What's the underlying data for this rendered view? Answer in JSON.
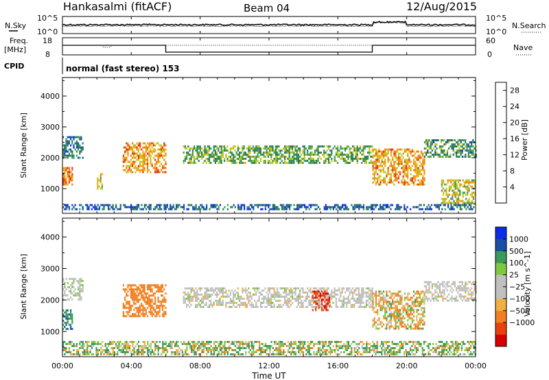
{
  "header": {
    "site": "Hankasalmi (fitACF)",
    "beam": "Beam 04",
    "date": "12/Aug/2015"
  },
  "noise_panel": {
    "left_label": "N.Sky",
    "right_label": "N.Search",
    "left_ticks": [
      "10^5",
      "10^0"
    ],
    "right_ticks": [
      "10^5",
      "10^0"
    ]
  },
  "freq_panel": {
    "left_label_1": "Freq.",
    "left_label_2": "[MHz]",
    "right_label": "Nave",
    "left_ticks": [
      "18",
      "8"
    ],
    "right_ticks": [
      "60",
      "0"
    ]
  },
  "cpid_panel": {
    "label": "CPID",
    "text": "normal (fast stereo) 153"
  },
  "x_axis": {
    "label": "Time UT",
    "ticks": [
      "00:00",
      "04:00",
      "08:00",
      "12:00",
      "16:00",
      "20:00",
      "00:00"
    ]
  },
  "colors": {
    "power": [
      "#0a2ee8",
      "#1a4fa8",
      "#2d7d52",
      "#3a9a5a",
      "#b8c820",
      "#e8b010",
      "#f08010",
      "#e83010",
      "#d80000"
    ],
    "velocity": [
      "#d80000",
      "#e84010",
      "#f08020",
      "#f0b040",
      "#c0c0c0",
      "#c0c0c0",
      "#80c840",
      "#3a9a5a",
      "#1a4fa8",
      "#0a2ee8"
    ]
  },
  "chart_data": [
    {
      "type": "heatmap",
      "title": "Power",
      "ylabel": "Slant Range [km]",
      "yticks": [
        "1000",
        "2000",
        "3000",
        "4000"
      ],
      "ylim": [
        200,
        4600
      ],
      "xlim": [
        "00:00",
        "24:00"
      ],
      "colorbar": {
        "label": "Power [dB]",
        "ticks": [
          "4",
          "8",
          "12",
          "16",
          "20",
          "24",
          "28"
        ],
        "range": [
          0,
          30
        ]
      },
      "bands": [
        {
          "t_start": 0.0,
          "t_end": 1.2,
          "range_km": [
            2000,
            2700
          ],
          "power_db": 8
        },
        {
          "t_start": 0.0,
          "t_end": 0.6,
          "range_km": [
            1100,
            1700
          ],
          "power_db": 22
        },
        {
          "t_start": 2.0,
          "t_end": 2.3,
          "range_km": [
            1000,
            1500
          ],
          "power_db": 16
        },
        {
          "t_start": 3.5,
          "t_end": 6.0,
          "range_km": [
            1500,
            2500
          ],
          "power_db": 20
        },
        {
          "t_start": 7.0,
          "t_end": 18.0,
          "range_km": [
            1800,
            2400
          ],
          "power_db": 12
        },
        {
          "t_start": 18.0,
          "t_end": 21.0,
          "range_km": [
            1100,
            2300
          ],
          "power_db": 20
        },
        {
          "t_start": 21.0,
          "t_end": 24.0,
          "range_km": [
            2000,
            2600
          ],
          "power_db": 10
        },
        {
          "t_start": 22.0,
          "t_end": 24.0,
          "range_km": [
            500,
            1300
          ],
          "power_db": 16
        },
        {
          "t_start": 0.0,
          "t_end": 24.0,
          "range_km": [
            300,
            500
          ],
          "power_db": 6
        }
      ]
    },
    {
      "type": "heatmap",
      "title": "Velocity",
      "ylabel": "Slant Range [km]",
      "yticks": [
        "1000",
        "2000",
        "3000",
        "4000"
      ],
      "ylim": [
        200,
        4600
      ],
      "xlim": [
        "00:00",
        "24:00"
      ],
      "colorbar": {
        "label": "Velocity [m s^-1]",
        "ticks": [
          "1000",
          "500",
          "100",
          "25",
          "−25",
          "−100",
          "−500",
          "−1000"
        ]
      },
      "bands": [
        {
          "t_start": 0.0,
          "t_end": 1.2,
          "range_km": [
            2000,
            2700
          ],
          "velocity": 10
        },
        {
          "t_start": 0.0,
          "t_end": 0.6,
          "range_km": [
            1100,
            1700
          ],
          "velocity": 400
        },
        {
          "t_start": 3.5,
          "t_end": 6.0,
          "range_km": [
            1500,
            2500
          ],
          "velocity": -300
        },
        {
          "t_start": 7.0,
          "t_end": 18.0,
          "range_km": [
            1800,
            2400
          ],
          "velocity": 0
        },
        {
          "t_start": 14.5,
          "t_end": 15.5,
          "range_km": [
            1700,
            2300
          ],
          "velocity": -900
        },
        {
          "t_start": 18.0,
          "t_end": 21.0,
          "range_km": [
            1100,
            2300
          ],
          "velocity": -50
        },
        {
          "t_start": 21.0,
          "t_end": 24.0,
          "range_km": [
            2000,
            2600
          ],
          "velocity": 0
        },
        {
          "t_start": 0.0,
          "t_end": 24.0,
          "range_km": [
            300,
            700
          ],
          "velocity": 60
        }
      ]
    }
  ]
}
